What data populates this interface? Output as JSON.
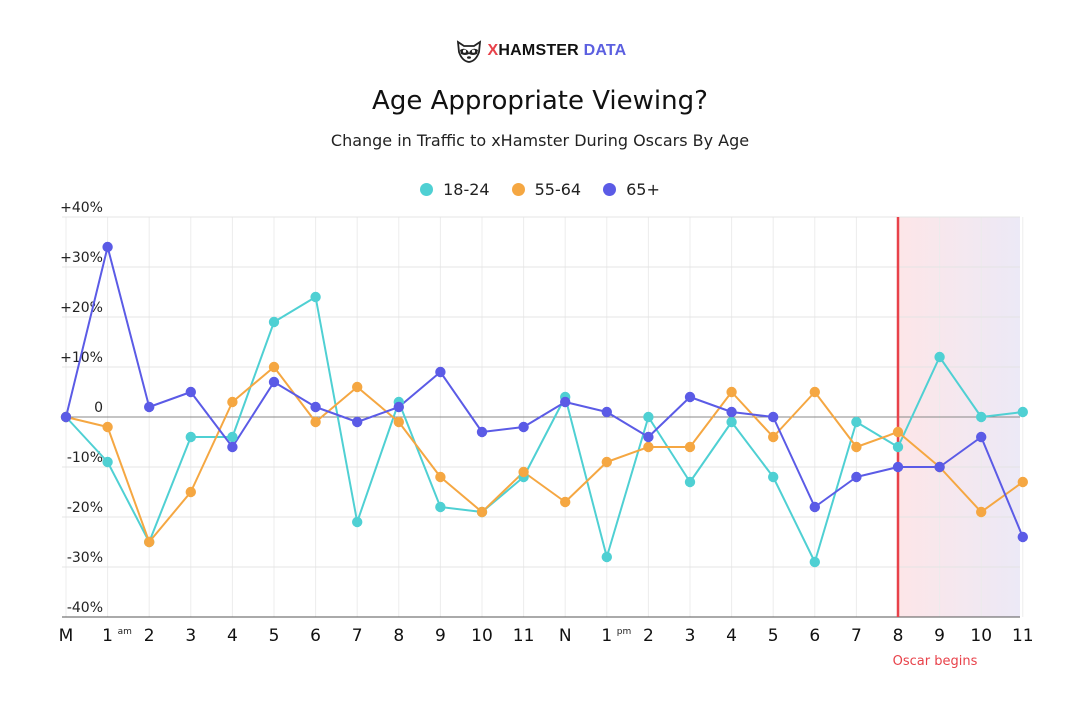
{
  "header": {
    "logo_prefix": "X",
    "logo_mid": "HAMSTER",
    "logo_suffix": "DATA",
    "logo_icon": "raccoon-face-icon"
  },
  "colors": {
    "series_18_24": "#4fd0d3",
    "series_55_64": "#f5a742",
    "series_65_plus": "#5b5be6",
    "oscar_line": "#e8424a",
    "oscar_band_start": "#fde6e8",
    "oscar_band_end": "#ece9f6"
  },
  "chart_data": {
    "type": "line",
    "title": "Age Appropriate Viewing?",
    "subtitle": "Change in Traffic to xHamster During Oscars By Age",
    "categories": [
      "M",
      "1",
      "2",
      "3",
      "4",
      "5",
      "6",
      "7",
      "8",
      "9",
      "10",
      "11",
      "N",
      "1",
      "2",
      "3",
      "4",
      "5",
      "6",
      "7",
      "8",
      "9",
      "10",
      "11"
    ],
    "category_superscripts": {
      "1": "am",
      "13": "pm"
    },
    "ylim": [
      -40,
      40
    ],
    "yticks": [
      "+40%",
      "+30%",
      "+20%",
      "+10%",
      "0",
      "-10%",
      "-20%",
      "-30%",
      "-40%"
    ],
    "ytick_values": [
      40,
      30,
      20,
      10,
      0,
      -10,
      -20,
      -30,
      -40
    ],
    "grid": true,
    "legend_position": "top-center",
    "series": [
      {
        "name": "18-24",
        "values": [
          0,
          -9,
          -25,
          -4,
          -4,
          19,
          24,
          -21,
          3,
          -18,
          -19,
          -12,
          4,
          -28,
          0,
          -13,
          -1,
          -12,
          -29,
          -1,
          -6,
          12,
          0,
          1
        ]
      },
      {
        "name": "55-64",
        "values": [
          0,
          -2,
          -25,
          -15,
          3,
          10,
          -1,
          6,
          -1,
          -12,
          -19,
          -11,
          -17,
          -9,
          -6,
          -6,
          5,
          -4,
          5,
          -6,
          -3,
          -10,
          -19,
          -13
        ]
      },
      {
        "name": "65+",
        "values": [
          0,
          34,
          2,
          5,
          -6,
          7,
          2,
          -1,
          2,
          9,
          -3,
          -2,
          3,
          1,
          -4,
          4,
          1,
          0,
          -18,
          -12,
          -10,
          -10,
          -4,
          -24
        ]
      }
    ],
    "annotations": [
      {
        "label": "Oscar begins",
        "at_index": 20
      }
    ]
  }
}
